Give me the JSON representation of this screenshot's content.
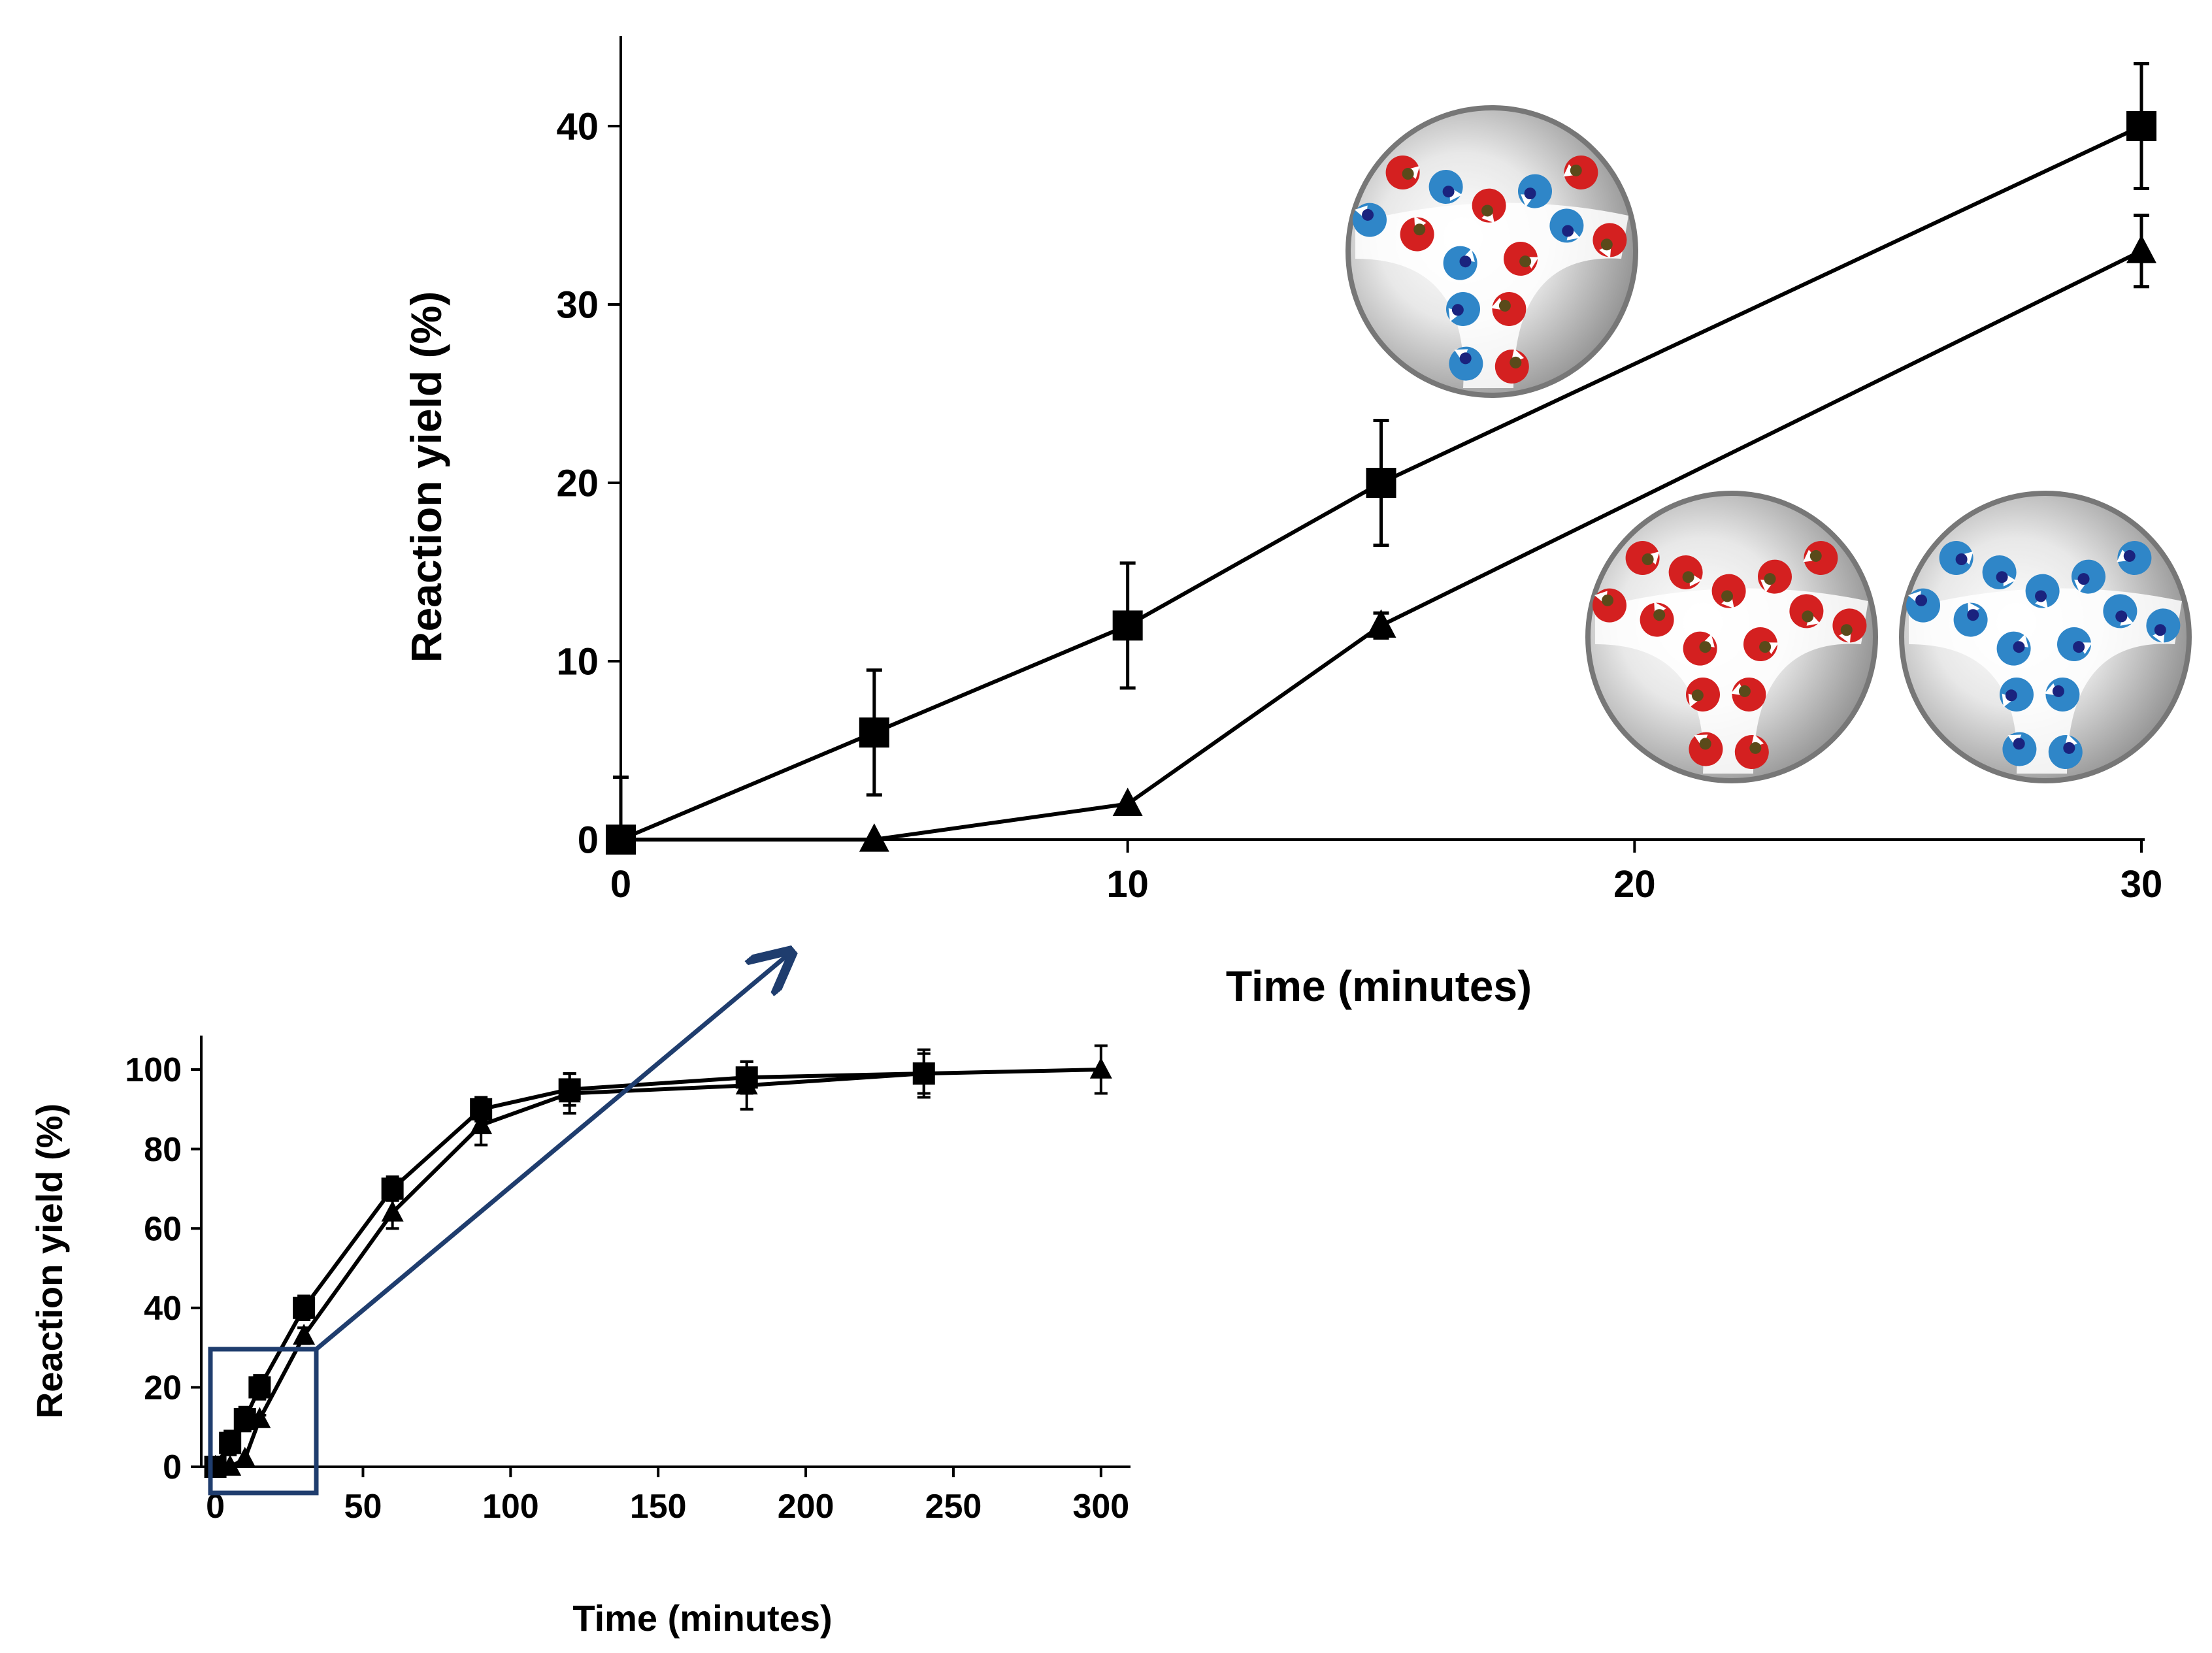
{
  "chart_data": [
    {
      "id": "main",
      "type": "line",
      "title": "",
      "xlabel": "Time (minutes)",
      "ylabel": "Reaction  yield (%)",
      "xlim": [
        0,
        30
      ],
      "ylim": [
        0,
        45
      ],
      "xticks": [
        0,
        10,
        20,
        30
      ],
      "yticks": [
        0,
        10,
        20,
        30,
        40
      ],
      "grid": false,
      "series": [
        {
          "name": "square-series",
          "marker": "square",
          "x": [
            0,
            5,
            10,
            15,
            30
          ],
          "y": [
            0,
            6,
            12,
            20,
            40
          ],
          "yerr": [
            3.5,
            3.5,
            3.5,
            3.5,
            3.5
          ]
        },
        {
          "name": "triangle-series",
          "marker": "triangle",
          "x": [
            0,
            5,
            10,
            15,
            30
          ],
          "y": [
            0,
            0,
            2,
            12,
            33
          ],
          "yerr": [
            0,
            0,
            0,
            0.7,
            2
          ]
        }
      ]
    },
    {
      "id": "inset",
      "type": "line",
      "title": "",
      "xlabel": "Time (minutes)",
      "ylabel": "Reaction  yield (%)",
      "xlim": [
        -5,
        310
      ],
      "ylim": [
        0,
        110
      ],
      "xticks": [
        0,
        50,
        100,
        150,
        200,
        250,
        300
      ],
      "yticks": [
        0,
        20,
        40,
        60,
        80,
        100
      ],
      "grid": false,
      "series": [
        {
          "name": "square-series",
          "marker": "square",
          "x": [
            0,
            5,
            10,
            15,
            30,
            60,
            90,
            120,
            180,
            240
          ],
          "y": [
            0,
            6,
            12,
            20,
            40,
            70,
            90,
            95,
            98,
            99
          ],
          "yerr": [
            2,
            3,
            3,
            3,
            3,
            3,
            3,
            4,
            4,
            5
          ]
        },
        {
          "name": "triangle-series",
          "marker": "triangle",
          "x": [
            0,
            5,
            10,
            15,
            30,
            60,
            90,
            120,
            180,
            240,
            300
          ],
          "y": [
            0,
            0,
            2,
            12,
            33,
            64,
            86,
            94,
            96,
            99,
            100
          ],
          "yerr": [
            0,
            0,
            0,
            1,
            2,
            4,
            5,
            5,
            6,
            6,
            6
          ]
        }
      ]
    }
  ],
  "colors": {
    "zoom_box": "#1f3d6e",
    "arrow": "#1f3d6e",
    "red_unit": "#d42020",
    "blue_unit": "#2f86c8",
    "sphere_light": "#ffffff",
    "sphere_dark": "#8a8a8a"
  },
  "illustrations": [
    {
      "name": "mixed-red-blue-sphere-icon"
    },
    {
      "name": "red-only-sphere-icon"
    },
    {
      "name": "blue-only-sphere-icon"
    }
  ]
}
